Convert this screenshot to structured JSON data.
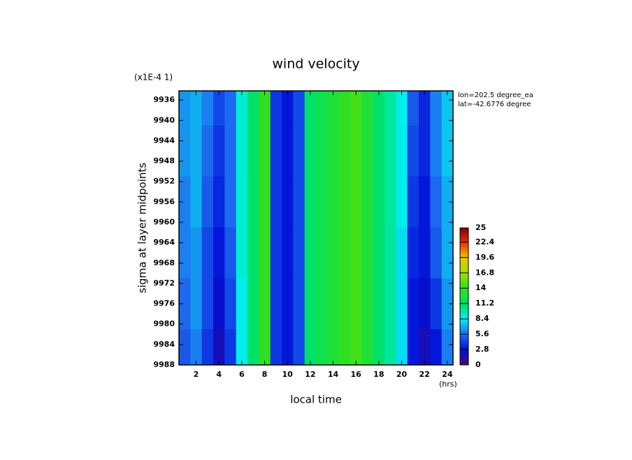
{
  "chart_data": {
    "type": "heatmap",
    "title": "wind velocity",
    "x_label": "local time",
    "y_label": "sigma at layer midpoints",
    "y_scale_note": "(x1E-4 1)",
    "x_unit": "(hrs)",
    "annotations": [
      "lon=202.5 degree_ea",
      "lat=-42.6776 degree"
    ],
    "x": [
      1,
      2,
      3,
      4,
      5,
      6,
      7,
      8,
      9,
      10,
      11,
      12,
      13,
      14,
      15,
      16,
      17,
      18,
      19,
      20,
      21,
      22,
      23,
      24
    ],
    "y": [
      9936,
      9946,
      9956,
      9966,
      9976,
      9986
    ],
    "values": [
      [
        6.5,
        7,
        6,
        4.5,
        5.5,
        9,
        11,
        14,
        4,
        3,
        4.5,
        11,
        12,
        13,
        14,
        14.5,
        13,
        11,
        10,
        8.5,
        5,
        3.5,
        6,
        7.5
      ],
      [
        6.5,
        7,
        5.5,
        4,
        5.5,
        9,
        11,
        14,
        4,
        3,
        4.5,
        11,
        12,
        13,
        14,
        14.5,
        13,
        11,
        10,
        8.5,
        4.5,
        3.5,
        6,
        7.5
      ],
      [
        6,
        7,
        5,
        3.5,
        5.5,
        9,
        11,
        14,
        4,
        3,
        4.5,
        11,
        12,
        13,
        14,
        14.5,
        13,
        11,
        10,
        8.5,
        4,
        3,
        5.5,
        7
      ],
      [
        6,
        6.5,
        4.5,
        3,
        5,
        9,
        11,
        14,
        4,
        3,
        4.5,
        11,
        12,
        13,
        14,
        14.5,
        13,
        11,
        10,
        8,
        3.5,
        3,
        5,
        7
      ],
      [
        5.5,
        6.5,
        4.5,
        2.5,
        4.5,
        8.5,
        11,
        14,
        4,
        3,
        4.5,
        11,
        12,
        13,
        14,
        14.5,
        13,
        11,
        10,
        8,
        3,
        2.5,
        4,
        6.5
      ],
      [
        5,
        6,
        4,
        2,
        4,
        8.5,
        11,
        14,
        4,
        3,
        4.5,
        11,
        12,
        13,
        14,
        14.5,
        13,
        11,
        10,
        8,
        3,
        2,
        3,
        6
      ]
    ],
    "xlim": [
      0.5,
      24.5
    ],
    "xticks": [
      2,
      4,
      6,
      8,
      10,
      12,
      14,
      16,
      18,
      20,
      22,
      24
    ],
    "ylim": [
      9988,
      9934.2
    ],
    "yticks": [
      9936,
      9940,
      9944,
      9948,
      9952,
      9956,
      9960,
      9964,
      9968,
      9972,
      9976,
      9980,
      9984,
      9988
    ],
    "colorbar": {
      "lim": [
        0,
        25
      ],
      "ticks": [
        0,
        2.8,
        5.6,
        8.4,
        11.2,
        14,
        16.8,
        19.6,
        22.4,
        25
      ]
    },
    "colorscale": [
      [
        0,
        "#4b0a6a"
      ],
      [
        2.8,
        "#0010d8"
      ],
      [
        5.6,
        "#1e6cf0"
      ],
      [
        8.4,
        "#00f0f0"
      ],
      [
        11.2,
        "#00e060"
      ],
      [
        14,
        "#30e020"
      ],
      [
        16.8,
        "#a0e000"
      ],
      [
        19.6,
        "#f0c000"
      ],
      [
        22.4,
        "#e03000"
      ],
      [
        25,
        "#800000"
      ]
    ]
  }
}
